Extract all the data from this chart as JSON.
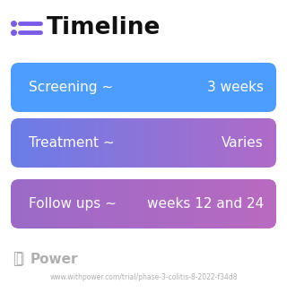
{
  "title": "Timeline",
  "background_color": "#ffffff",
  "rows": [
    {
      "label_left": "Screening ~",
      "label_right": "3 weeks",
      "color_left": "#4d9dff",
      "color_right": "#4d9dff"
    },
    {
      "label_left": "Treatment ~",
      "label_right": "Varies",
      "color_left": "#6b7de8",
      "color_right": "#b06bc8"
    },
    {
      "label_left": "Follow ups ~",
      "label_right": "weeks 12 and 24",
      "color_left": "#9b6bc8",
      "color_right": "#b86ac0"
    }
  ],
  "watermark": "Power",
  "url": "www.withpower.com/trial/phase-3-colitis-8-2022-f34d8",
  "text_color": "#ffffff",
  "title_color": "#111111",
  "icon_dot_color": "#7b5ce8",
  "icon_line_color": "#7b5ce8",
  "watermark_color": "#b0b0b0",
  "url_color": "#b0b0b0"
}
